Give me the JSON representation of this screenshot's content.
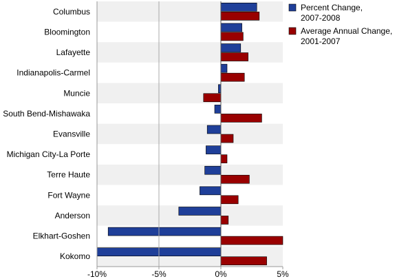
{
  "chart_data": {
    "type": "bar",
    "orientation": "horizontal",
    "categories": [
      "Columbus",
      "Bloomington",
      "Lafayette",
      "Indianapolis-Carmel",
      "Muncie",
      "South Bend-Mishawaka",
      "Evansville",
      "Michigan City-La Porte",
      "Terre Haute",
      "Fort Wayne",
      "Anderson",
      "Elkhart-Goshen",
      "Kokomo"
    ],
    "series": [
      {
        "name": "Percent Change,\n2007-2008",
        "color": "#1f3f99",
        "values": [
          2.9,
          1.7,
          1.6,
          0.5,
          -0.2,
          -0.5,
          -1.1,
          -1.2,
          -1.3,
          -1.7,
          -3.4,
          -9.1,
          -10.0
        ]
      },
      {
        "name": "Average Annual Change,\n2001-2007",
        "color": "#990000",
        "values": [
          3.1,
          1.8,
          2.2,
          1.9,
          -1.4,
          3.3,
          1.0,
          0.5,
          2.3,
          1.4,
          0.6,
          5.0,
          3.7
        ]
      }
    ],
    "xlim": [
      -10,
      5
    ],
    "xticks": [
      -10,
      -5,
      0,
      5
    ],
    "xtick_labels": [
      "-10%",
      "-5%",
      "0%",
      "5%"
    ],
    "legend_position": "right",
    "grid": false,
    "row_band_colors": [
      "#f0f0f0",
      "#ffffff"
    ]
  }
}
